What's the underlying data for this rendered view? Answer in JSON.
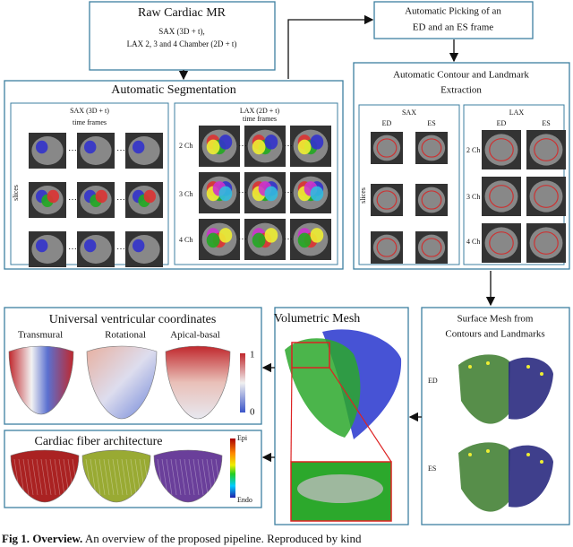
{
  "raw_mr": {
    "title": "Raw Cardiac MR",
    "lines": [
      "SAX (3D + t),",
      "LAX 2, 3 and 4 Chamber (2D + t)"
    ]
  },
  "picking": {
    "lines": [
      "Automatic Picking of an",
      "ED and an ES frame"
    ]
  },
  "segmentation": {
    "title": "Automatic Segmentation",
    "sax": {
      "title": "SAX (3D + t)",
      "time_label": "time frames",
      "slice_label": "slices"
    },
    "lax": {
      "title": "LAX (2D + t)",
      "time_label": "time frames",
      "rows": [
        "2 Ch",
        "3 Ch",
        "4 Ch"
      ]
    }
  },
  "contour": {
    "title_lines": [
      "Automatic Contour and Landmark",
      "Extraction"
    ],
    "sax": {
      "title": "SAX",
      "columns": [
        "ED",
        "ES"
      ],
      "slice_label": "slices"
    },
    "lax": {
      "title": "LAX",
      "columns": [
        "ED",
        "ES"
      ],
      "rows": [
        "2 Ch",
        "3 Ch",
        "4 Ch"
      ]
    }
  },
  "uvc": {
    "title": "Universal ventricular coordinates",
    "panels": [
      "Transmural",
      "Rotational",
      "Apical-basal"
    ],
    "colorbar": {
      "max": "1",
      "min": "0"
    }
  },
  "volumetric": {
    "title": "Volumetric Mesh"
  },
  "surface": {
    "title_lines": [
      "Surface Mesh from",
      "Contours and Landmarks"
    ],
    "frames": [
      "ED",
      "ES"
    ]
  },
  "fiber": {
    "title": "Cardiac fiber architecture",
    "colorbar": {
      "top": "Epi",
      "bottom": "Endo"
    }
  },
  "caption": {
    "label": "Fig 1.",
    "bold": "Overview.",
    "text": "An overview of the proposed pipeline. Reproduced by kind"
  }
}
